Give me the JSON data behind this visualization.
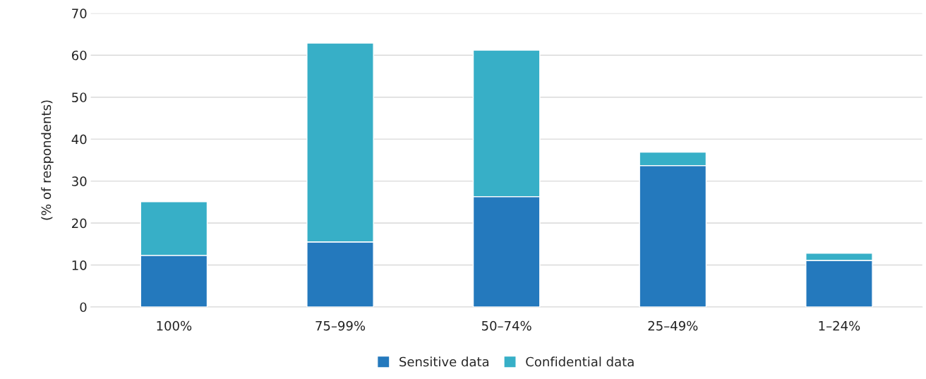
{
  "chart_data": {
    "type": "bar",
    "ylabel": "(% of respondents)",
    "categories": [
      "100%",
      "75–99%",
      "50–74%",
      "25–49%",
      "1–24%"
    ],
    "stacked": true,
    "series": [
      {
        "name": "Sensitive data",
        "color": "#2479bd",
        "values": [
          12.3,
          15.5,
          26.3,
          33.7,
          11.1
        ]
      },
      {
        "name": "Confidential data",
        "color": "#37afc7",
        "values": [
          12.8,
          47.4,
          34.9,
          3.2,
          1.7
        ]
      }
    ],
    "ylim": [
      0,
      70
    ],
    "yticks": [
      0,
      10,
      20,
      30,
      40,
      50,
      60,
      70
    ],
    "grid": "y",
    "legend": "bottom"
  }
}
